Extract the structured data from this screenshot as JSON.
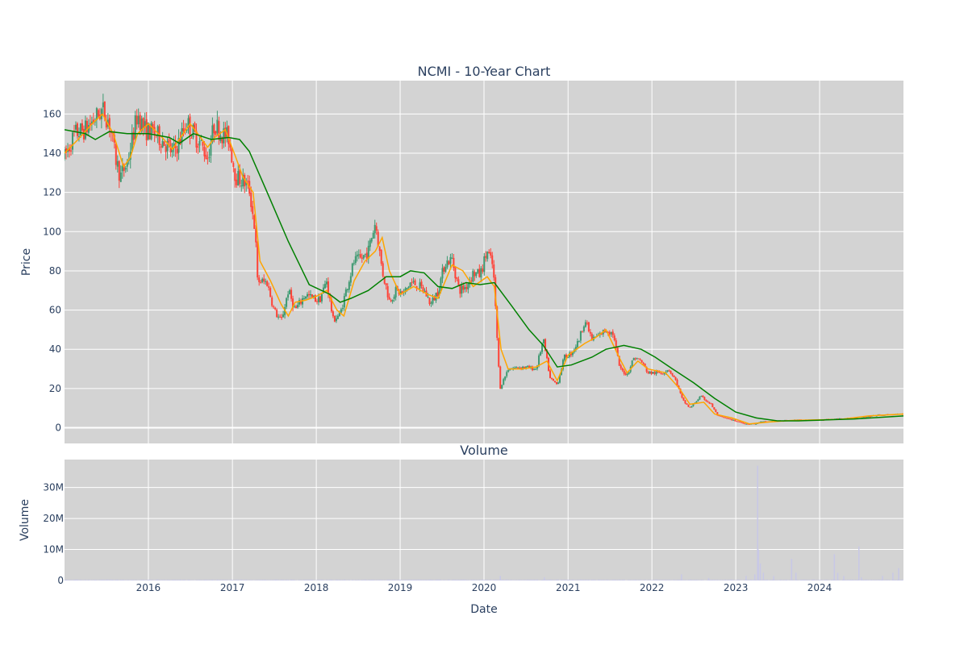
{
  "chart_data": [
    {
      "type": "candlestick",
      "title": "NCMI - 10-Year Chart",
      "ylabel": "Price",
      "xlabel": "",
      "ylim": [
        -8,
        177
      ],
      "xlim": [
        "2015-01-01",
        "2024-12-31"
      ],
      "yticks": [
        0,
        20,
        40,
        60,
        80,
        100,
        120,
        140,
        160
      ],
      "ytick_labels": [
        "0",
        "20",
        "40",
        "60",
        "80",
        "100",
        "120",
        "140",
        "160"
      ],
      "grid": true,
      "up_color": "#3d9970",
      "down_color": "#ff4136",
      "price_path": [
        [
          "2015-01-01",
          138
        ],
        [
          "2015-02-15",
          150
        ],
        [
          "2015-04-01",
          152
        ],
        [
          "2015-05-15",
          158
        ],
        [
          "2015-06-15",
          162
        ],
        [
          "2015-07-15",
          156
        ],
        [
          "2015-08-10",
          138
        ],
        [
          "2015-09-01",
          128
        ],
        [
          "2015-10-01",
          135
        ],
        [
          "2015-11-15",
          160
        ],
        [
          "2015-12-15",
          152
        ],
        [
          "2016-02-01",
          150
        ],
        [
          "2016-03-15",
          145
        ],
        [
          "2016-04-15",
          140
        ],
        [
          "2016-05-15",
          146
        ],
        [
          "2016-06-15",
          156
        ],
        [
          "2016-07-15",
          150
        ],
        [
          "2016-08-15",
          145
        ],
        [
          "2016-09-15",
          138
        ],
        [
          "2016-10-15",
          155
        ],
        [
          "2016-11-15",
          150
        ],
        [
          "2016-12-15",
          148
        ],
        [
          "2017-01-15",
          128
        ],
        [
          "2017-02-15",
          126
        ],
        [
          "2017-03-15",
          122
        ],
        [
          "2017-04-10",
          100
        ],
        [
          "2017-04-20",
          75
        ],
        [
          "2017-06-01",
          74
        ],
        [
          "2017-07-01",
          60
        ],
        [
          "2017-08-01",
          54
        ],
        [
          "2017-09-01",
          70
        ],
        [
          "2017-10-01",
          60
        ],
        [
          "2017-11-15",
          68
        ],
        [
          "2017-12-15",
          66
        ],
        [
          "2018-01-15",
          65
        ],
        [
          "2018-02-15",
          75
        ],
        [
          "2018-03-15",
          55
        ],
        [
          "2018-04-15",
          58
        ],
        [
          "2018-05-15",
          72
        ],
        [
          "2018-06-15",
          85
        ],
        [
          "2018-07-15",
          86
        ],
        [
          "2018-08-15",
          90
        ],
        [
          "2018-09-15",
          105
        ],
        [
          "2018-10-15",
          80
        ],
        [
          "2018-11-15",
          65
        ],
        [
          "2018-12-15",
          70
        ],
        [
          "2019-01-15",
          68
        ],
        [
          "2019-02-15",
          74
        ],
        [
          "2019-03-15",
          73
        ],
        [
          "2019-04-15",
          70
        ],
        [
          "2019-05-15",
          63
        ],
        [
          "2019-06-15",
          70
        ],
        [
          "2019-07-15",
          84
        ],
        [
          "2019-08-15",
          86
        ],
        [
          "2019-09-15",
          70
        ],
        [
          "2019-10-15",
          72
        ],
        [
          "2019-11-15",
          79
        ],
        [
          "2019-12-15",
          78
        ],
        [
          "2020-01-15",
          90
        ],
        [
          "2020-02-10",
          82
        ],
        [
          "2020-02-25",
          50
        ],
        [
          "2020-03-10",
          20
        ],
        [
          "2020-04-15",
          30
        ],
        [
          "2020-06-15",
          31
        ],
        [
          "2020-08-15",
          30
        ],
        [
          "2020-09-15",
          45
        ],
        [
          "2020-10-15",
          25
        ],
        [
          "2020-11-15",
          22
        ],
        [
          "2020-12-15",
          36
        ],
        [
          "2021-01-15",
          38
        ],
        [
          "2021-02-15",
          44
        ],
        [
          "2021-03-15",
          55
        ],
        [
          "2021-04-15",
          45
        ],
        [
          "2021-05-15",
          47
        ],
        [
          "2021-06-15",
          50
        ],
        [
          "2021-07-15",
          48
        ],
        [
          "2021-08-15",
          30
        ],
        [
          "2021-09-15",
          27
        ],
        [
          "2021-10-15",
          36
        ],
        [
          "2021-11-15",
          34
        ],
        [
          "2021-12-15",
          28
        ],
        [
          "2022-02-15",
          28
        ],
        [
          "2022-03-15",
          30
        ],
        [
          "2022-04-15",
          24
        ],
        [
          "2022-05-15",
          14
        ],
        [
          "2022-06-15",
          10
        ],
        [
          "2022-08-01",
          16
        ],
        [
          "2022-09-15",
          12
        ],
        [
          "2022-10-15",
          6
        ],
        [
          "2022-12-15",
          4
        ],
        [
          "2023-02-15",
          2
        ],
        [
          "2023-04-01",
          2
        ],
        [
          "2023-04-15",
          3
        ],
        [
          "2023-07-15",
          3.5
        ],
        [
          "2023-09-15",
          4
        ],
        [
          "2023-12-15",
          4
        ],
        [
          "2024-03-15",
          4.5
        ],
        [
          "2024-06-15",
          5
        ],
        [
          "2024-09-15",
          6.5
        ],
        [
          "2024-12-31",
          7
        ]
      ],
      "series": [
        {
          "name": "",
          "color": "#ffa500",
          "points": [
            [
              "2015-01-01",
              140
            ],
            [
              "2015-03-01",
              147
            ],
            [
              "2015-05-01",
              155
            ],
            [
              "2015-06-15",
              160
            ],
            [
              "2015-08-01",
              150
            ],
            [
              "2015-09-15",
              133
            ],
            [
              "2015-10-15",
              138
            ],
            [
              "2015-11-15",
              150
            ],
            [
              "2016-01-01",
              155
            ],
            [
              "2016-03-01",
              148
            ],
            [
              "2016-04-15",
              142
            ],
            [
              "2016-06-01",
              150
            ],
            [
              "2016-07-01",
              155
            ],
            [
              "2016-08-15",
              148
            ],
            [
              "2016-09-15",
              143
            ],
            [
              "2016-10-15",
              148
            ],
            [
              "2016-12-01",
              152
            ],
            [
              "2017-01-15",
              138
            ],
            [
              "2017-02-15",
              128
            ],
            [
              "2017-04-01",
              120
            ],
            [
              "2017-05-01",
              85
            ],
            [
              "2017-06-15",
              75
            ],
            [
              "2017-08-01",
              63
            ],
            [
              "2017-09-01",
              57
            ],
            [
              "2017-10-01",
              64
            ],
            [
              "2017-11-15",
              65
            ],
            [
              "2018-01-01",
              67
            ],
            [
              "2018-02-15",
              70
            ],
            [
              "2018-04-01",
              60
            ],
            [
              "2018-05-01",
              57
            ],
            [
              "2018-06-15",
              75
            ],
            [
              "2018-08-01",
              85
            ],
            [
              "2018-09-15",
              90
            ],
            [
              "2018-10-15",
              97
            ],
            [
              "2018-11-15",
              80
            ],
            [
              "2019-01-01",
              68
            ],
            [
              "2019-03-01",
              72
            ],
            [
              "2019-05-01",
              68
            ],
            [
              "2019-06-15",
              66
            ],
            [
              "2019-08-15",
              83
            ],
            [
              "2019-10-01",
              80
            ],
            [
              "2019-11-15",
              72
            ],
            [
              "2020-01-15",
              77
            ],
            [
              "2020-02-15",
              72
            ],
            [
              "2020-03-15",
              40
            ],
            [
              "2020-04-15",
              30
            ],
            [
              "2020-06-15",
              30
            ],
            [
              "2020-08-15",
              31
            ],
            [
              "2020-10-01",
              34
            ],
            [
              "2020-11-15",
              24
            ],
            [
              "2021-01-01",
              37
            ],
            [
              "2021-03-15",
              43
            ],
            [
              "2021-05-01",
              46
            ],
            [
              "2021-06-15",
              50
            ],
            [
              "2021-08-15",
              35
            ],
            [
              "2021-09-15",
              28
            ],
            [
              "2021-11-01",
              34
            ],
            [
              "2021-12-15",
              30
            ],
            [
              "2022-03-01",
              28
            ],
            [
              "2022-05-01",
              20
            ],
            [
              "2022-06-15",
              12
            ],
            [
              "2022-08-15",
              13
            ],
            [
              "2022-10-01",
              7
            ],
            [
              "2022-12-15",
              5
            ],
            [
              "2023-03-01",
              2
            ],
            [
              "2023-06-01",
              3
            ],
            [
              "2023-09-01",
              3.7
            ],
            [
              "2023-12-15",
              4
            ],
            [
              "2024-04-01",
              4.3
            ],
            [
              "2024-08-01",
              6
            ],
            [
              "2024-12-31",
              7
            ]
          ]
        },
        {
          "name": "",
          "color": "#008000",
          "points": [
            [
              "2015-01-01",
              152
            ],
            [
              "2015-04-01",
              150
            ],
            [
              "2015-05-15",
              147
            ],
            [
              "2015-07-15",
              151
            ],
            [
              "2015-10-01",
              150
            ],
            [
              "2016-01-01",
              150
            ],
            [
              "2016-04-01",
              148
            ],
            [
              "2016-05-15",
              145
            ],
            [
              "2016-07-15",
              150
            ],
            [
              "2016-10-01",
              147
            ],
            [
              "2016-12-15",
              148
            ],
            [
              "2017-02-01",
              147
            ],
            [
              "2017-03-15",
              141
            ],
            [
              "2017-06-01",
              120
            ],
            [
              "2017-09-01",
              95
            ],
            [
              "2017-12-01",
              73
            ],
            [
              "2018-03-01",
              68
            ],
            [
              "2018-04-15",
              64
            ],
            [
              "2018-06-01",
              66
            ],
            [
              "2018-08-15",
              70
            ],
            [
              "2018-11-01",
              77
            ],
            [
              "2019-01-01",
              77
            ],
            [
              "2019-02-15",
              80
            ],
            [
              "2019-04-15",
              79
            ],
            [
              "2019-06-15",
              72
            ],
            [
              "2019-08-15",
              71
            ],
            [
              "2019-10-15",
              74
            ],
            [
              "2019-12-15",
              73
            ],
            [
              "2020-02-15",
              74
            ],
            [
              "2020-05-01",
              62
            ],
            [
              "2020-07-15",
              50
            ],
            [
              "2020-09-15",
              42
            ],
            [
              "2020-11-15",
              31
            ],
            [
              "2021-01-15",
              32
            ],
            [
              "2021-04-15",
              36
            ],
            [
              "2021-06-15",
              40
            ],
            [
              "2021-09-01",
              42
            ],
            [
              "2021-11-15",
              40
            ],
            [
              "2022-01-15",
              36
            ],
            [
              "2022-04-01",
              30
            ],
            [
              "2022-07-01",
              23
            ],
            [
              "2022-10-01",
              15
            ],
            [
              "2023-01-01",
              8
            ],
            [
              "2023-04-01",
              5
            ],
            [
              "2023-07-01",
              3.5
            ],
            [
              "2023-10-01",
              3.5
            ],
            [
              "2024-02-01",
              4
            ],
            [
              "2024-06-01",
              4.5
            ],
            [
              "2024-12-31",
              6
            ]
          ]
        }
      ],
      "annotations": []
    },
    {
      "type": "bar",
      "title": "Volume",
      "ylabel": "Volume",
      "xlabel": "Date",
      "ylim": [
        0,
        39000000
      ],
      "xlim": [
        "2015-01-01",
        "2024-12-31"
      ],
      "yticks": [
        0,
        10000000,
        20000000,
        30000000
      ],
      "ytick_labels": [
        "0",
        "10M",
        "20M",
        "30M"
      ],
      "xticks": [
        "2016-01-01",
        "2017-01-01",
        "2018-01-01",
        "2019-01-01",
        "2020-01-01",
        "2021-01-01",
        "2022-01-01",
        "2023-01-01",
        "2024-01-01"
      ],
      "xtick_labels": [
        "2016",
        "2017",
        "2018",
        "2019",
        "2020",
        "2021",
        "2022",
        "2023",
        "2024"
      ],
      "grid": true,
      "color": "#c8c8e6",
      "base_volume": 200000,
      "spikes": [
        [
          "2020-03-12",
          1500000
        ],
        [
          "2020-09-20",
          1000000
        ],
        [
          "2022-05-10",
          2000000
        ],
        [
          "2022-09-05",
          800000
        ],
        [
          "2023-02-15",
          1500000
        ],
        [
          "2023-03-25",
          2000000
        ],
        [
          "2023-04-06",
          37000000
        ],
        [
          "2023-04-10",
          10000000
        ],
        [
          "2023-04-18",
          5500000
        ],
        [
          "2023-05-01",
          2500000
        ],
        [
          "2023-06-15",
          1500000
        ],
        [
          "2023-09-01",
          7000000
        ],
        [
          "2023-09-20",
          2500000
        ],
        [
          "2024-03-05",
          8500000
        ],
        [
          "2024-03-20",
          2500000
        ],
        [
          "2024-04-15",
          1500000
        ],
        [
          "2024-06-20",
          11000000
        ],
        [
          "2024-07-01",
          1000000
        ],
        [
          "2024-10-01",
          1500000
        ],
        [
          "2024-11-15",
          2500000
        ],
        [
          "2024-12-10",
          4000000
        ]
      ]
    }
  ]
}
